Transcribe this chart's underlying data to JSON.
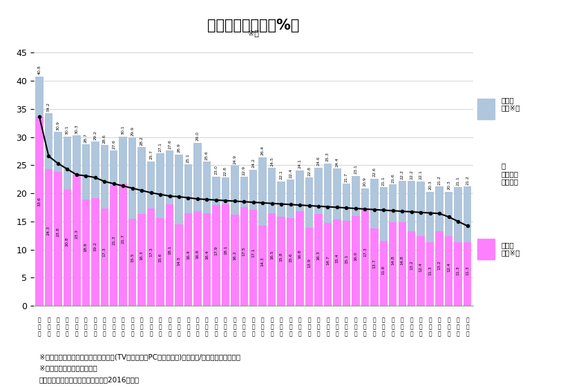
{
  "title": "スポーツ観戦率（%）",
  "subtitle": "※１",
  "footnote1": "※１：スポーツ観戦率＝スポーツ観戦(TV・スマホ・PCなどは除く)行動者数/各都道府県推定人口",
  "footnote2": "※２：都市部＝人口集中地区",
  "footnote3": "資料：総務省「社会生活基本調査（2016年）」",
  "urban_male": [
    40.8,
    34.2,
    30.9,
    30.1,
    30.3,
    28.7,
    29.2,
    28.6,
    27.6,
    30.1,
    29.9,
    28.2,
    25.7,
    27.1,
    27.6,
    26.9,
    25.1,
    29.0,
    25.6,
    23.0,
    22.8,
    24.9,
    22.9,
    24.2,
    26.4,
    24.5,
    22.1,
    22.4,
    24.1,
    22.8,
    24.6,
    25.3,
    24.4,
    21.7,
    23.1,
    20.9,
    22.6,
    21.1,
    21.6,
    22.2,
    22.2,
    22.1,
    20.3,
    21.2,
    20.3,
    21.1,
    21.2
  ],
  "urban_female": [
    33.6,
    24.3,
    23.8,
    20.8,
    23.3,
    18.9,
    19.2,
    17.3,
    21.3,
    21.7,
    15.5,
    16.3,
    17.3,
    15.6,
    18.1,
    14.5,
    16.4,
    16.8,
    16.4,
    17.9,
    18.1,
    16.2,
    17.5,
    17.1,
    14.3,
    16.5,
    15.8,
    15.6,
    16.8,
    13.9,
    16.3,
    14.7,
    15.4,
    15.1,
    16.0,
    17.3,
    13.7,
    11.6,
    14.8,
    14.8,
    13.2,
    12.4,
    11.3,
    13.2,
    12.4,
    11.3,
    11.3
  ],
  "pref_avg": [
    33.6,
    26.6,
    25.3,
    24.3,
    23.3,
    23.1,
    22.8,
    22.1,
    21.7,
    21.3,
    20.9,
    20.5,
    20.1,
    19.8,
    19.5,
    19.4,
    19.2,
    19.0,
    18.9,
    18.8,
    18.7,
    18.6,
    18.5,
    18.4,
    18.3,
    18.2,
    18.1,
    18.0,
    17.9,
    17.8,
    17.7,
    17.6,
    17.5,
    17.4,
    17.3,
    17.2,
    17.1,
    17.0,
    16.9,
    16.8,
    16.7,
    16.6,
    16.5,
    16.4,
    15.8,
    15.0,
    14.2
  ],
  "pref_row1": [
    "広",
    "宮",
    "福",
    "神",
    "北",
    "東",
    "千",
    "愛",
    "佐",
    "兵",
    "秋",
    "埼",
    "大",
    "岩",
    "滋",
    "島",
    "沖",
    "山",
    "富",
    "石",
    "大",
    "京",
    "山",
    "奈",
    "山",
    "愛",
    "長",
    "茨",
    "岡",
    "徳",
    "三",
    "群",
    "長",
    "福",
    "宮",
    "栃",
    "鹿",
    "静",
    "能",
    "香",
    "和",
    "新",
    "青",
    "鳥",
    "福",
    "高",
    "知"
  ],
  "pref_row2": [
    "島",
    "城",
    "岡",
    "奈",
    "海",
    "京",
    "葉",
    "知",
    "賀",
    "庫",
    "田",
    "玉",
    "阪",
    "手",
    "賀",
    "根",
    "縄",
    "梨",
    "山",
    "川",
    "分",
    "都",
    "口",
    "良",
    "形",
    "媛",
    "崎",
    "城",
    "山",
    "島",
    "重",
    "馬",
    "野",
    "島",
    "崎",
    "木",
    "児",
    "岡",
    "本",
    "川",
    "阜",
    "歌",
    "潟",
    "森",
    "取",
    "井",
    "知"
  ],
  "pref_row3": [
    "県",
    "県",
    "県",
    "川",
    "道",
    "都",
    "県",
    "県",
    "県",
    "県",
    "県",
    "県",
    "府",
    "県",
    "県",
    "県",
    "府",
    "県",
    "県",
    "県",
    "県",
    "府",
    "県",
    "県",
    "県",
    "県",
    "県",
    "県",
    "県",
    "県",
    "県",
    "県",
    "県",
    "県",
    "県",
    "県",
    "県",
    "県",
    "県",
    "県",
    "県",
    "県",
    "県",
    "県",
    "県",
    "県",
    "県"
  ],
  "pref_row4": [
    "",
    "",
    "",
    "",
    "",
    "",
    "",
    "",
    "",
    "",
    "",
    "",
    "",
    "",
    "",
    "",
    "",
    "",
    "",
    "",
    "",
    "",
    "",
    "",
    "",
    "",
    "",
    "",
    "",
    "",
    "",
    "",
    "",
    "",
    "",
    "",
    "",
    "",
    "",
    "",
    "",
    "",
    "",
    "",
    "",
    "",
    ""
  ],
  "bar_color_top": "#afc6dc",
  "bar_color_bottom": "#ff80ff",
  "line_color": "#000000",
  "ylim": [
    0,
    46
  ],
  "yticks": [
    0,
    5,
    10,
    15,
    20,
    25,
    30,
    35,
    40,
    45
  ]
}
